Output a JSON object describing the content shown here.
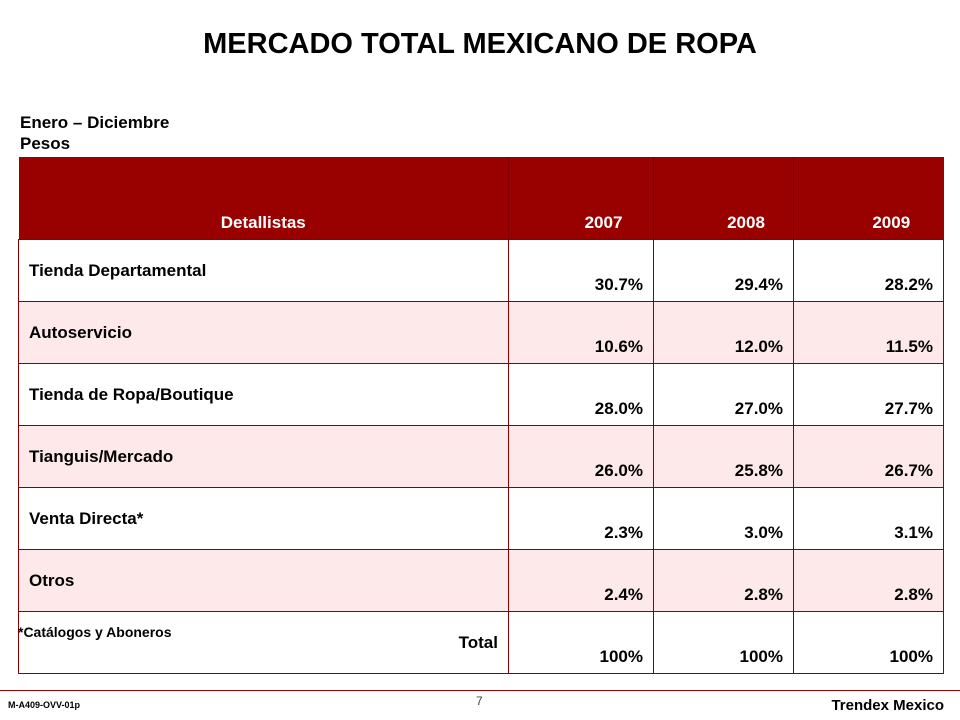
{
  "title": "MERCADO TOTAL MEXICANO DE ROPA",
  "subtitle": {
    "line1": "Enero – Diciembre",
    "line2": "Pesos"
  },
  "table": {
    "headers": [
      "Detallistas",
      "2007",
      "2008",
      "2009"
    ],
    "rows": [
      {
        "name": "Tienda Departamental",
        "v2007": "30.7%",
        "v2008": "29.4%",
        "v2009": "28.2%"
      },
      {
        "name": "Autoservicio",
        "v2007": "10.6%",
        "v2008": "12.0%",
        "v2009": "11.5%"
      },
      {
        "name": "Tienda de Ropa/Boutique",
        "v2007": "28.0%",
        "v2008": "27.0%",
        "v2009": "27.7%"
      },
      {
        "name": "Tianguis/Mercado",
        "v2007": "26.0%",
        "v2008": "25.8%",
        "v2009": "26.7%"
      },
      {
        "name": "Venta Directa*",
        "v2007": "2.3%",
        "v2008": "3.0%",
        "v2009": "3.1%"
      },
      {
        "name": "Otros",
        "v2007": "2.4%",
        "v2008": "2.8%",
        "v2009": "2.8%"
      },
      {
        "name": "Total",
        "v2007": "100%",
        "v2008": "100%",
        "v2009": "100%"
      }
    ]
  },
  "footnote": "*Catálogos y Aboneros",
  "footer": {
    "code": "M-A409-OVV-01p",
    "page": "7",
    "brand": "Trendex Mexico"
  },
  "colors": {
    "header_bg": "#990000",
    "alt_row_bg": "#fde9e9",
    "border": "#8b0000"
  }
}
